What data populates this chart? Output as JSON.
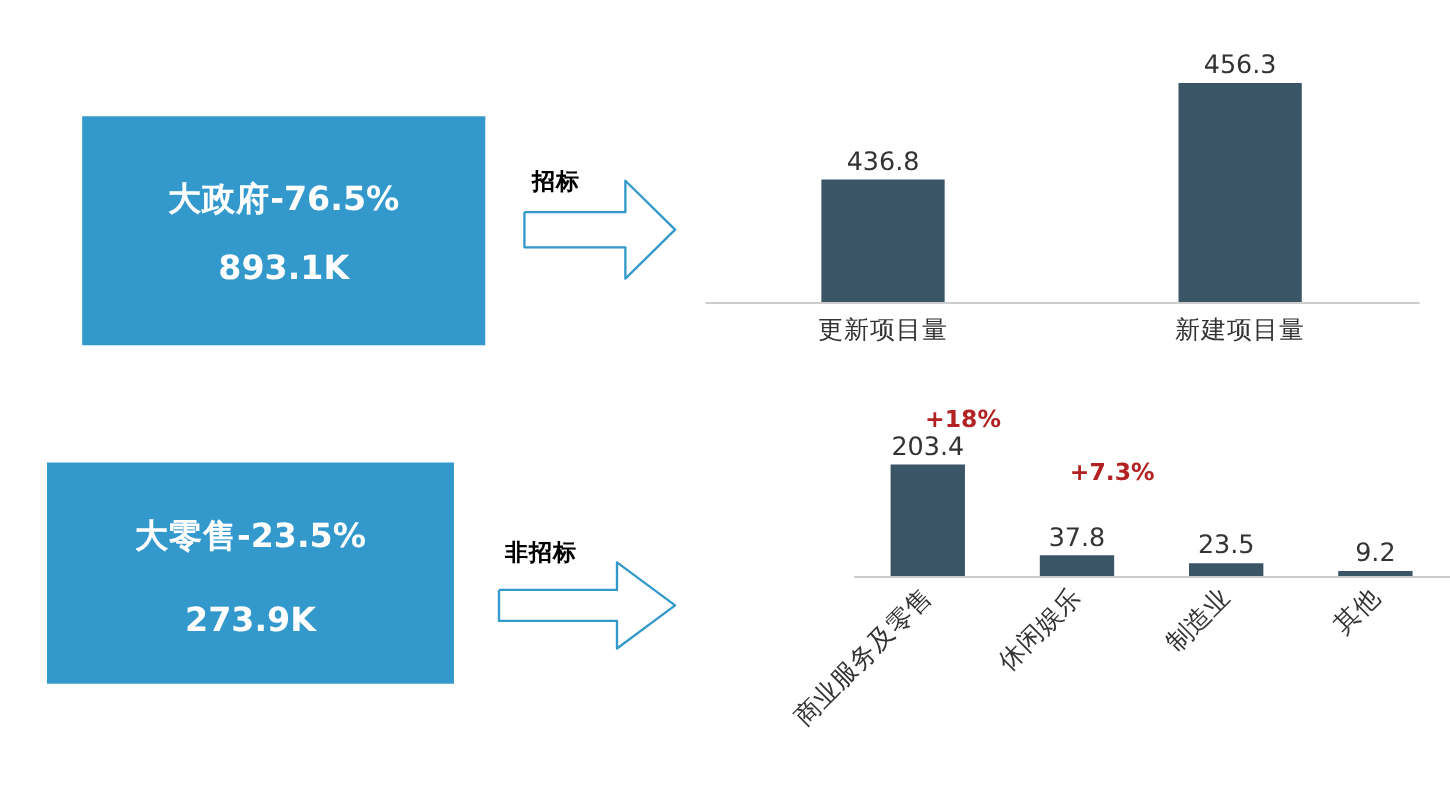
{
  "chart_data": [
    {
      "type": "other",
      "title": "大政府-76.5%",
      "subtitle": "893.1K",
      "color": "#3399cc",
      "annotations": [
        "招标"
      ]
    },
    {
      "type": "bar",
      "categories": [
        "更新项目量",
        "新建项目量"
      ],
      "values": [
        436.8,
        456.3
      ],
      "color": "#3a5566",
      "ylim": [
        412,
        456.3
      ],
      "data_labels": true,
      "tick_labels": "x"
    },
    {
      "type": "other",
      "title": "大零售-23.5%",
      "subtitle": "273.9K",
      "color": "#3399cc",
      "annotations": [
        "非招标"
      ]
    },
    {
      "type": "bar",
      "categories": [
        "商业服务及零售",
        "休闲娱乐",
        "制造业",
        "其他"
      ],
      "values": [
        203.4,
        37.8,
        23.5,
        9.2
      ],
      "color": "#3a5566",
      "ylim": [
        0,
        203.4
      ],
      "data_labels": true,
      "tick_labels": "x",
      "annotations": [
        "+18%",
        "+7.3%"
      ]
    }
  ]
}
